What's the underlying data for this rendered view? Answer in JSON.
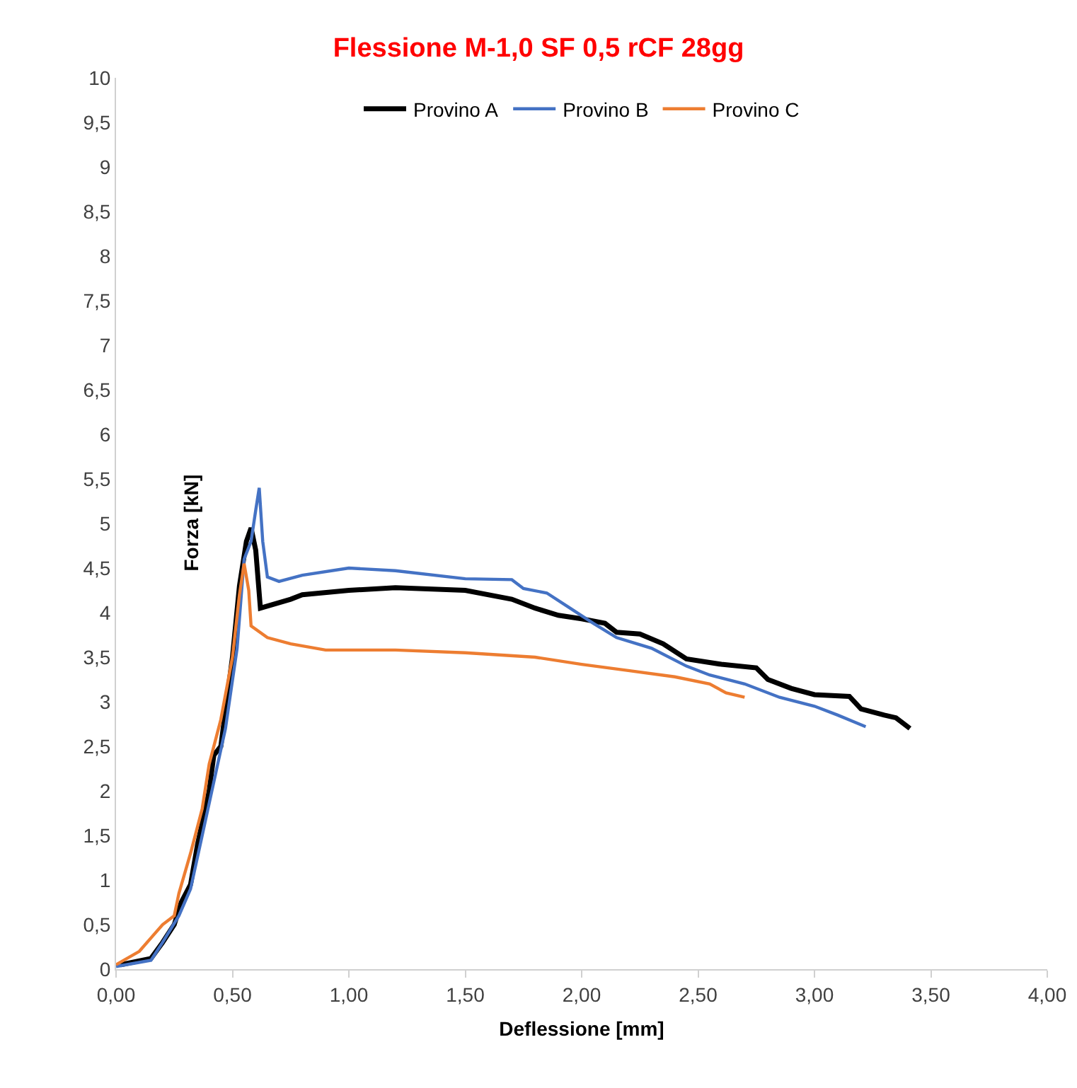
{
  "chart_data": {
    "type": "line",
    "title": "Flessione M-1,0 SF 0,5 rCF 28gg",
    "xlabel": "Deflessione [mm]",
    "ylabel": "Forza [kN]",
    "xlim": [
      0,
      4
    ],
    "ylim": [
      0,
      10
    ],
    "xticks": [
      {
        "value": 0,
        "label": "0,00"
      },
      {
        "value": 0.5,
        "label": "0,50"
      },
      {
        "value": 1,
        "label": "1,00"
      },
      {
        "value": 1.5,
        "label": "1,50"
      },
      {
        "value": 2,
        "label": "2,00"
      },
      {
        "value": 2.5,
        "label": "2,50"
      },
      {
        "value": 3,
        "label": "3,00"
      },
      {
        "value": 3.5,
        "label": "3,50"
      },
      {
        "value": 4,
        "label": "4,00"
      }
    ],
    "yticks": [
      0,
      {
        "value": 0.5,
        "label": "0,5"
      },
      1,
      {
        "value": 1.5,
        "label": "1,5"
      },
      2,
      {
        "value": 2.5,
        "label": "2,5"
      },
      3,
      {
        "value": 3.5,
        "label": "3,5"
      },
      4,
      {
        "value": 4.5,
        "label": "4,5"
      },
      5,
      {
        "value": 5.5,
        "label": "5,5"
      },
      6,
      {
        "value": 6.5,
        "label": "6,5"
      },
      7,
      {
        "value": 7.5,
        "label": "7,5"
      },
      8,
      {
        "value": 8.5,
        "label": "8,5"
      },
      9,
      {
        "value": 9.5,
        "label": "9,5"
      },
      10
    ],
    "grid": false,
    "legend": "top",
    "marker": "none",
    "series": [
      {
        "name": "Provino A",
        "color": "#000000",
        "x": [
          0.02,
          0.15,
          0.2,
          0.25,
          0.28,
          0.32,
          0.35,
          0.4,
          0.42,
          0.45,
          0.5,
          0.53,
          0.56,
          0.58,
          0.6,
          0.62,
          0.75,
          0.8,
          1.0,
          1.2,
          1.5,
          1.7,
          1.8,
          1.9,
          2.0,
          2.1,
          2.15,
          2.25,
          2.35,
          2.45,
          2.6,
          2.75,
          2.8,
          2.9,
          3.0,
          3.15,
          3.2,
          3.3,
          3.35,
          3.41
        ],
        "values": [
          0.05,
          0.12,
          0.3,
          0.5,
          0.75,
          0.95,
          1.4,
          2.0,
          2.4,
          2.5,
          3.5,
          4.3,
          4.8,
          4.95,
          4.7,
          4.05,
          4.15,
          4.2,
          4.25,
          4.28,
          4.25,
          4.15,
          4.05,
          3.97,
          3.93,
          3.88,
          3.78,
          3.76,
          3.65,
          3.48,
          3.42,
          3.38,
          3.25,
          3.15,
          3.08,
          3.06,
          2.92,
          2.85,
          2.82,
          2.7
        ]
      },
      {
        "name": "Provino B",
        "color": "#4472c4",
        "x": [
          0.0,
          0.15,
          0.2,
          0.27,
          0.32,
          0.37,
          0.42,
          0.47,
          0.52,
          0.55,
          0.58,
          0.6,
          0.615,
          0.63,
          0.65,
          0.7,
          0.8,
          1.0,
          1.2,
          1.5,
          1.7,
          1.75,
          1.85,
          1.95,
          2.05,
          2.15,
          2.3,
          2.45,
          2.55,
          2.7,
          2.85,
          3.0,
          3.1,
          3.22
        ],
        "values": [
          0.03,
          0.1,
          0.3,
          0.6,
          0.9,
          1.5,
          2.1,
          2.7,
          3.6,
          4.6,
          4.8,
          5.15,
          5.4,
          4.8,
          4.4,
          4.35,
          4.42,
          4.5,
          4.47,
          4.38,
          4.37,
          4.27,
          4.22,
          4.05,
          3.88,
          3.72,
          3.6,
          3.4,
          3.3,
          3.2,
          3.05,
          2.95,
          2.85,
          2.72
        ]
      },
      {
        "name": "Provino C",
        "color": "#ed7d31",
        "x": [
          0.0,
          0.1,
          0.15,
          0.2,
          0.25,
          0.27,
          0.32,
          0.37,
          0.4,
          0.45,
          0.5,
          0.53,
          0.55,
          0.57,
          0.58,
          0.65,
          0.75,
          0.9,
          1.2,
          1.5,
          1.8,
          2.0,
          2.2,
          2.4,
          2.55,
          2.62,
          2.7
        ],
        "values": [
          0.05,
          0.2,
          0.35,
          0.5,
          0.6,
          0.85,
          1.3,
          1.8,
          2.3,
          2.8,
          3.5,
          4.2,
          4.55,
          4.25,
          3.85,
          3.72,
          3.65,
          3.58,
          3.58,
          3.55,
          3.5,
          3.42,
          3.35,
          3.28,
          3.2,
          3.1,
          3.05
        ]
      }
    ]
  }
}
